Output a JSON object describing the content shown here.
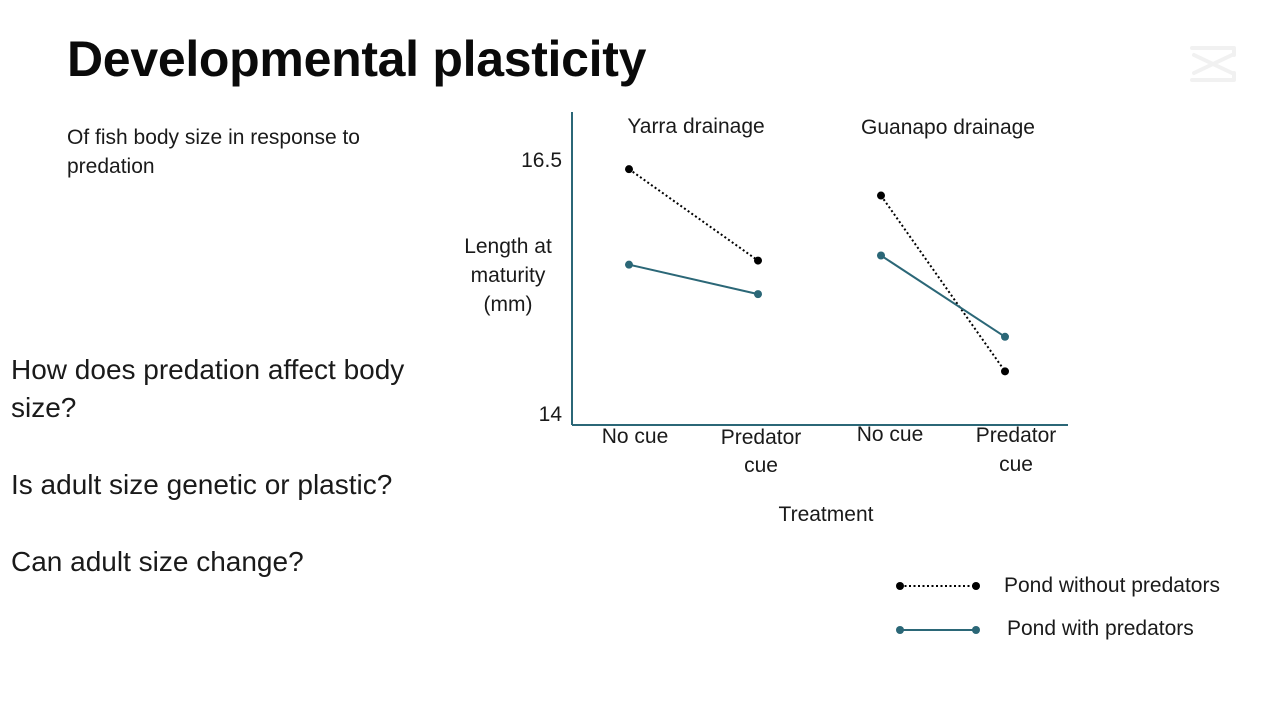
{
  "slide": {
    "title": "Developmental plasticity",
    "subtitle": "Of fish body size in response to predation",
    "questions": [
      "How does predation affect body size?",
      "Is adult size genetic or plastic?",
      "Can adult size change?"
    ],
    "logo_icon": "capcut-logo-icon"
  },
  "chart_data": {
    "type": "line",
    "xlabel": "Treatment",
    "ylabel": "Length at maturity (mm)",
    "yticks": [
      14,
      16.5
    ],
    "ylim": [
      14,
      16.9
    ],
    "grid": false,
    "legend_position": "bottom-right",
    "categories": [
      "No cue",
      "Predator cue"
    ],
    "panels": [
      {
        "title": "Yarra drainage",
        "series": [
          {
            "name": "Pond without predators",
            "values": [
              16.41,
              15.51
            ]
          },
          {
            "name": "Pond with predators",
            "values": [
              15.47,
              15.18
            ]
          }
        ]
      },
      {
        "title": "Guanapo drainage",
        "series": [
          {
            "name": "Pond without predators",
            "values": [
              16.15,
              14.42
            ]
          },
          {
            "name": "Pond with predators",
            "values": [
              15.56,
              14.76
            ]
          }
        ]
      }
    ],
    "series_styles": [
      {
        "name": "Pond without predators",
        "color": "#000000",
        "dash": "dotted"
      },
      {
        "name": "Pond with predators",
        "color": "#2b6777",
        "dash": "solid"
      }
    ]
  }
}
